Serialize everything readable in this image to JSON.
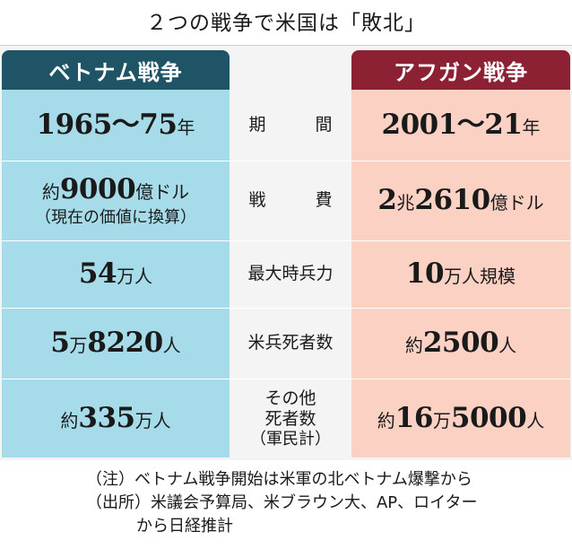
{
  "title": "２つの戦争で米国は「敗北」",
  "headers": {
    "left": "ベトナム戦争",
    "right": "アフガン戦争"
  },
  "rows": [
    {
      "label": "期　間",
      "left": [
        {
          "t": "1965～75",
          "b": true
        },
        {
          "t": "年",
          "b": false
        }
      ],
      "right": [
        {
          "t": "2001～21",
          "b": true
        },
        {
          "t": "年",
          "b": false
        }
      ]
    },
    {
      "label": "戦　費",
      "left_line1": [
        {
          "t": "約",
          "b": false
        },
        {
          "t": "9000",
          "b": true
        },
        {
          "t": "億ドル",
          "b": false
        }
      ],
      "left_line2": "（現在の価値に換算）",
      "right": [
        {
          "t": "2",
          "b": true
        },
        {
          "t": "兆",
          "b": false
        },
        {
          "t": "2610",
          "b": true
        },
        {
          "t": "億ドル",
          "b": false
        }
      ]
    },
    {
      "label": "最大時兵力",
      "left": [
        {
          "t": "54",
          "b": true
        },
        {
          "t": "万人",
          "b": false
        }
      ],
      "right": [
        {
          "t": "10",
          "b": true
        },
        {
          "t": "万人規模",
          "b": false
        }
      ]
    },
    {
      "label": "米兵死者数",
      "left": [
        {
          "t": "5",
          "b": true
        },
        {
          "t": "万",
          "b": false
        },
        {
          "t": "8220",
          "b": true
        },
        {
          "t": "人",
          "b": false
        }
      ],
      "right": [
        {
          "t": "約",
          "b": false
        },
        {
          "t": "2500",
          "b": true
        },
        {
          "t": "人",
          "b": false
        }
      ]
    },
    {
      "label_line1": "その他",
      "label_line2": "死者数",
      "label_line3": "（軍民計）",
      "left": [
        {
          "t": "約",
          "b": false
        },
        {
          "t": "335",
          "b": true
        },
        {
          "t": "万人",
          "b": false
        }
      ],
      "right": [
        {
          "t": "約",
          "b": false
        },
        {
          "t": "16",
          "b": true
        },
        {
          "t": "万",
          "b": false
        },
        {
          "t": "5000",
          "b": true
        },
        {
          "t": "人",
          "b": false
        }
      ]
    }
  ],
  "notes": {
    "note": "（注）ベトナム戦争開始は米軍の北ベトナム爆撃から",
    "source": "（出所）米議会予算局、米ブラウン大、AP、ロイター",
    "source_cont": "から日経推計"
  }
}
